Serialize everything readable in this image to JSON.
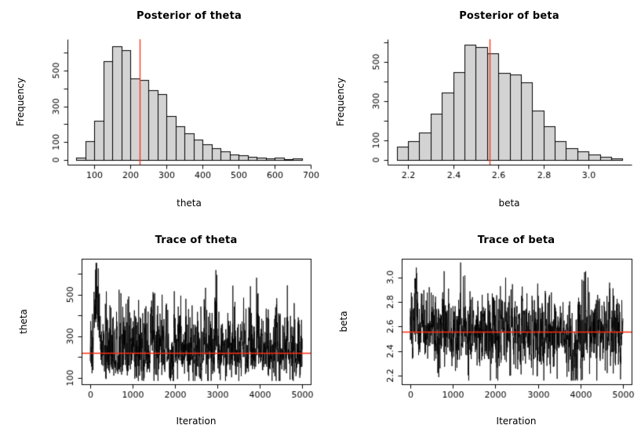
{
  "page": {
    "background": "#ffffff"
  },
  "colors": {
    "hist_fill": "#d3d3d3",
    "hist_stroke": "#000000",
    "series": "#000000",
    "ref_line": "#fb2d10",
    "text": "#000000"
  },
  "chart_data": [
    {
      "id": "posterior-theta",
      "type": "histogram",
      "title": "Posterior of theta",
      "xlabel": "theta",
      "ylabel": "Frequency",
      "bins": {
        "start": 50,
        "width": 25,
        "counts": [
          15,
          105,
          220,
          555,
          635,
          615,
          455,
          450,
          390,
          370,
          245,
          190,
          148,
          115,
          88,
          66,
          50,
          32,
          26,
          18,
          12,
          9,
          12,
          5,
          9
        ]
      },
      "xlim": [
        25,
        700
      ],
      "ylim": [
        -26,
        676
      ],
      "x_ticks": {
        "values": [
          100,
          200,
          300,
          400,
          500,
          600,
          700
        ],
        "labels": [
          "100",
          "200",
          "300",
          "400",
          "500",
          "600",
          "700"
        ]
      },
      "y_ticks": {
        "values": [
          0,
          100,
          200,
          300,
          400,
          500,
          600
        ],
        "label_values": [
          0,
          100,
          300,
          500
        ],
        "labels": [
          "0",
          "100",
          "300",
          "500"
        ]
      },
      "ref": {
        "axis": "x",
        "value": 225
      }
    },
    {
      "id": "posterior-beta",
      "type": "histogram",
      "title": "Posterior of beta",
      "xlabel": "beta",
      "ylabel": "Frequency",
      "bins": {
        "start": 2.15,
        "width": 0.05,
        "counts": [
          68,
          95,
          140,
          235,
          345,
          450,
          590,
          575,
          545,
          445,
          438,
          395,
          252,
          173,
          95,
          62,
          45,
          30,
          17,
          10
        ]
      },
      "xlim": [
        2.11,
        3.19
      ],
      "ylim": [
        -24,
        616
      ],
      "x_ticks": {
        "values": [
          2.2,
          2.4,
          2.6,
          2.8,
          3.0
        ],
        "labels": [
          "2.2",
          "2.4",
          "2.6",
          "2.8",
          "3.0"
        ]
      },
      "y_ticks": {
        "values": [
          0,
          100,
          200,
          300,
          400,
          500,
          600
        ],
        "label_values": [
          0,
          100,
          300,
          500
        ],
        "labels": [
          "0",
          "100",
          "300",
          "500"
        ]
      },
      "ref": {
        "axis": "x",
        "value": 2.56
      }
    },
    {
      "id": "trace-theta",
      "type": "trace",
      "title": "Trace of theta",
      "xlabel": "Iteration",
      "ylabel": "theta",
      "xlim": [
        -200,
        5200
      ],
      "ylim": [
        70,
        672
      ],
      "x_ticks": {
        "values": [
          0,
          1000,
          2000,
          3000,
          4000,
          5000
        ],
        "labels": [
          "0",
          "1000",
          "2000",
          "3000",
          "4000",
          "5000"
        ]
      },
      "y_ticks": {
        "values": [
          100,
          200,
          300,
          400,
          500,
          600
        ],
        "label_values": [
          100,
          300,
          500
        ],
        "labels": [
          "100",
          "300",
          "500"
        ]
      },
      "ref": {
        "axis": "y",
        "value": 222
      },
      "series": {
        "n": 1500,
        "x_from": 0,
        "x_to": 5000,
        "seed": 20,
        "mean": 215,
        "sd": 75,
        "skew_up": 1.5,
        "skew_down": 0.8,
        "phi": 0.3,
        "min": 86,
        "max": 652,
        "events": [
          {
            "from": 0.012,
            "to": 0.05,
            "amp": 420
          },
          {
            "from": 0.28,
            "to": 0.3,
            "amp": 220
          },
          {
            "from": 0.585,
            "to": 0.6,
            "amp": 200
          },
          {
            "from": 0.78,
            "to": 0.795,
            "amp": 230
          }
        ]
      }
    },
    {
      "id": "trace-beta",
      "type": "trace",
      "title": "Trace of beta",
      "xlabel": "Iteration",
      "ylabel": "beta",
      "xlim": [
        -200,
        5200
      ],
      "ylim": [
        2.13,
        3.15
      ],
      "x_ticks": {
        "values": [
          0,
          1000,
          2000,
          3000,
          4000,
          5000
        ],
        "labels": [
          "0",
          "1000",
          "2000",
          "3000",
          "4000",
          "5000"
        ]
      },
      "y_ticks": {
        "values": [
          2.2,
          2.4,
          2.6,
          2.8,
          3.0
        ],
        "label_values": [
          2.2,
          2.4,
          2.6,
          2.8,
          3.0
        ],
        "labels": [
          "2.2",
          "2.4",
          "2.6",
          "2.8",
          "3.0"
        ]
      },
      "ref": {
        "axis": "y",
        "value": 2.56
      },
      "series": {
        "n": 1500,
        "x_from": 0,
        "x_to": 5000,
        "seed": 77,
        "mean": 2.56,
        "sd": 0.155,
        "skew_up": 1.0,
        "skew_down": 1.0,
        "phi": 0.3,
        "min": 2.16,
        "max": 3.12,
        "events": [
          {
            "from": 0.01,
            "to": 0.04,
            "amp": 0.52
          },
          {
            "from": 0.75,
            "to": 0.79,
            "amp": -0.36
          }
        ]
      }
    }
  ]
}
